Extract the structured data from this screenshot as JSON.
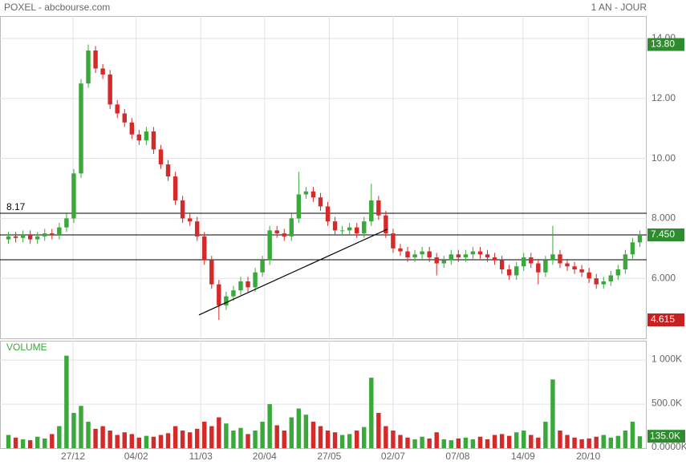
{
  "chart_data": {
    "type": "candlestick",
    "title": "POXEL - abcbourse.com",
    "period": "1 AN - JOUR",
    "up_color": "#3aa83a",
    "down_color": "#d42a2a",
    "grid": true,
    "xticks": [
      {
        "value": 8.9,
        "label": "27/12"
      },
      {
        "value": 17.6,
        "label": "04/02"
      },
      {
        "value": 26.5,
        "label": "11/03"
      },
      {
        "value": 35.3,
        "label": "20/04"
      },
      {
        "value": 44.2,
        "label": "27/05"
      },
      {
        "value": 53.0,
        "label": "02/07"
      },
      {
        "value": 61.9,
        "label": "07/08"
      },
      {
        "value": 70.9,
        "label": "14/09"
      },
      {
        "value": 79.9,
        "label": "20/10"
      }
    ],
    "ylim": [
      4.0,
      14.75
    ],
    "yticks": [
      {
        "value": 6,
        "label": "6.000"
      },
      {
        "value": 8,
        "label": "8.000"
      },
      {
        "value": 10,
        "label": "10.00"
      },
      {
        "value": 12,
        "label": "12.00"
      },
      {
        "value": 14,
        "label": "14.00"
      }
    ],
    "open": [
      7.3,
      7.4,
      7.35,
      7.45,
      7.3,
      7.4,
      7.5,
      7.45,
      7.7,
      8.0,
      9.5,
      12.5,
      13.6,
      13.0,
      12.8,
      11.8,
      11.5,
      11.2,
      10.8,
      10.6,
      10.9,
      10.3,
      9.8,
      9.4,
      8.6,
      8.0,
      7.9,
      7.4,
      6.6,
      5.8,
      5.1,
      5.4,
      5.6,
      5.9,
      5.7,
      6.2,
      6.6,
      7.6,
      7.5,
      7.4,
      8.0,
      8.8,
      8.9,
      8.7,
      8.4,
      7.9,
      7.6,
      7.6,
      7.7,
      7.5,
      7.9,
      8.6,
      8.1,
      7.5,
      7.0,
      6.9,
      6.7,
      6.8,
      6.9,
      6.7,
      6.5,
      6.6,
      6.8,
      6.7,
      6.8,
      6.9,
      6.8,
      6.7,
      6.6,
      6.3,
      6.1,
      6.4,
      6.7,
      6.5,
      6.2,
      6.6,
      6.8,
      6.5,
      6.4,
      6.3,
      6.2,
      6.0,
      5.8,
      5.9,
      6.1,
      6.3,
      6.8,
      7.2
    ],
    "high": [
      7.55,
      7.55,
      7.6,
      7.6,
      7.55,
      7.65,
      7.65,
      7.85,
      8.15,
      9.65,
      12.65,
      13.8,
      13.75,
      13.15,
      12.95,
      11.95,
      11.65,
      11.35,
      10.95,
      11.05,
      11.05,
      10.45,
      9.95,
      9.55,
      8.75,
      8.15,
      8.05,
      7.55,
      6.75,
      5.95,
      5.55,
      5.75,
      6.05,
      6.05,
      6.35,
      6.75,
      7.75,
      7.75,
      7.65,
      8.15,
      9.55,
      9.05,
      9.05,
      8.85,
      8.55,
      8.05,
      7.75,
      7.85,
      7.85,
      8.05,
      9.15,
      8.75,
      8.25,
      7.65,
      7.15,
      7.05,
      6.95,
      7.05,
      7.05,
      6.85,
      6.75,
      6.95,
      6.95,
      6.95,
      7.05,
      7.05,
      6.95,
      6.85,
      6.75,
      6.45,
      6.55,
      6.85,
      6.85,
      6.65,
      6.75,
      7.75,
      6.95,
      6.65,
      6.55,
      6.45,
      6.35,
      6.15,
      6.05,
      6.25,
      6.45,
      6.95,
      7.35,
      7.6
    ],
    "low": [
      7.15,
      7.2,
      7.2,
      7.15,
      7.15,
      7.25,
      7.3,
      7.3,
      7.55,
      7.85,
      9.35,
      12.35,
      12.85,
      12.65,
      11.65,
      11.35,
      11.05,
      10.65,
      10.45,
      10.45,
      10.15,
      9.65,
      9.25,
      8.45,
      7.85,
      7.75,
      7.25,
      6.45,
      5.65,
      4.615,
      4.95,
      5.25,
      5.45,
      5.55,
      5.55,
      6.05,
      6.45,
      7.35,
      7.25,
      7.25,
      7.85,
      8.65,
      8.55,
      8.25,
      7.75,
      7.45,
      7.45,
      7.45,
      7.35,
      7.35,
      7.75,
      7.95,
      7.35,
      6.85,
      6.75,
      6.55,
      6.55,
      6.65,
      6.55,
      6.1,
      6.35,
      6.45,
      6.55,
      6.55,
      6.65,
      6.65,
      6.55,
      6.45,
      6.15,
      5.95,
      5.95,
      6.25,
      6.35,
      5.8,
      6.05,
      6.45,
      6.35,
      6.25,
      6.15,
      6.05,
      5.85,
      5.65,
      5.65,
      5.75,
      5.95,
      6.15,
      6.65,
      7.05
    ],
    "close": [
      7.4,
      7.35,
      7.45,
      7.3,
      7.4,
      7.5,
      7.45,
      7.7,
      8.0,
      9.5,
      12.5,
      13.6,
      13.0,
      12.8,
      11.8,
      11.5,
      11.2,
      10.8,
      10.6,
      10.9,
      10.3,
      9.8,
      9.4,
      8.6,
      8.0,
      7.9,
      7.4,
      6.6,
      5.8,
      5.1,
      5.4,
      5.6,
      5.9,
      5.7,
      6.2,
      6.6,
      7.6,
      7.5,
      7.4,
      8.0,
      8.8,
      8.9,
      8.7,
      8.4,
      7.9,
      7.6,
      7.6,
      7.7,
      7.5,
      7.9,
      8.6,
      8.1,
      7.5,
      7.0,
      6.9,
      6.7,
      6.8,
      6.9,
      6.7,
      6.5,
      6.6,
      6.8,
      6.7,
      6.8,
      6.9,
      6.8,
      6.7,
      6.6,
      6.3,
      6.1,
      6.4,
      6.7,
      6.5,
      6.2,
      6.6,
      6.8,
      6.5,
      6.4,
      6.3,
      6.2,
      6.0,
      5.8,
      5.9,
      6.1,
      6.3,
      6.8,
      7.2,
      7.45
    ],
    "volume": [
      150000,
      120000,
      100000,
      90000,
      130000,
      110000,
      160000,
      250000,
      1050000,
      400000,
      480000,
      300000,
      220000,
      250000,
      200000,
      150000,
      180000,
      160000,
      120000,
      140000,
      130000,
      150000,
      170000,
      250000,
      200000,
      180000,
      220000,
      300000,
      250000,
      350000,
      280000,
      200000,
      230000,
      160000,
      200000,
      300000,
      500000,
      260000,
      200000,
      350000,
      450000,
      380000,
      300000,
      250000,
      200000,
      180000,
      150000,
      160000,
      200000,
      240000,
      800000,
      400000,
      250000,
      200000,
      150000,
      120000,
      100000,
      130000,
      110000,
      180000,
      100000,
      90000,
      110000,
      120000,
      100000,
      130000,
      100000,
      150000,
      160000,
      140000,
      180000,
      200000,
      150000,
      120000,
      300000,
      780000,
      200000,
      150000,
      120000,
      100000,
      110000,
      130000,
      150000,
      120000,
      140000,
      200000,
      300000,
      135000
    ],
    "volume_title": "VOLUME",
    "volume_ylim": [
      0,
      1220000
    ],
    "volume_ticks": [
      {
        "value": 0,
        "label": "0.0000K"
      },
      {
        "value": 500000,
        "label": "500.0K"
      },
      {
        "value": 1000000,
        "label": "1 000K"
      }
    ],
    "levels": [
      {
        "value": 8.17,
        "label": "8.17"
      },
      {
        "value": 7.45
      },
      {
        "value": 6.62
      }
    ],
    "price_markers": [
      {
        "value": 13.8,
        "label": "13.80",
        "color": "#2e8b2e"
      },
      {
        "value": 7.45,
        "label": "7.450",
        "color": "#2e8b2e"
      },
      {
        "value": 4.615,
        "label": "4.615",
        "color": "#c62020"
      }
    ],
    "volume_marker": {
      "value": 135000,
      "label": "135.0K",
      "color": "#2e8b2e"
    },
    "trendline": {
      "x": [
        26.25,
        52.2
      ],
      "y": [
        4.78,
        7.64
      ]
    }
  }
}
